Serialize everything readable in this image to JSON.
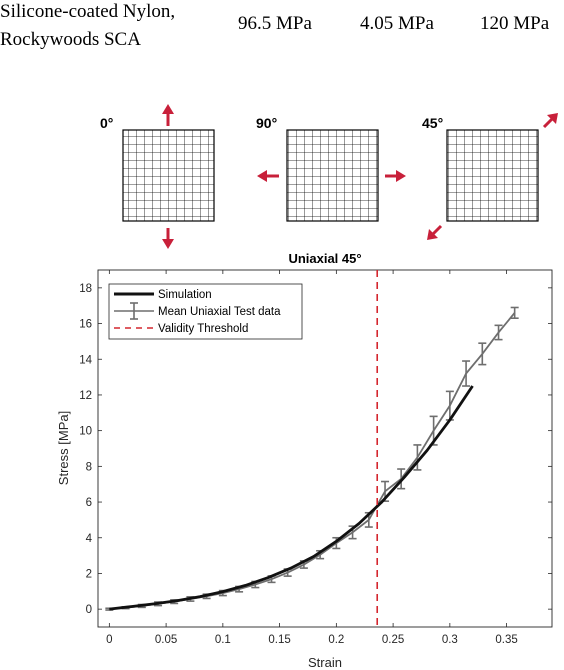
{
  "table_row": {
    "material_line1": "Silicone-coated Nylon,",
    "material_line2": "Rockywoods SCA",
    "value1": "96.5 MPa",
    "value2": "4.05 MPa",
    "value3": "120 MPa"
  },
  "orientations": [
    {
      "label": "0°",
      "arrow_direction": "vertical"
    },
    {
      "label": "90°",
      "arrow_direction": "horizontal"
    },
    {
      "label": "45°",
      "arrow_direction": "diagonal"
    }
  ],
  "colors": {
    "arrow": "#c8203a",
    "simulation": "#111111",
    "test_data": "#6e6e6e",
    "threshold": "#d4262e",
    "axis": "#262626"
  },
  "chart_data": {
    "type": "line",
    "title": "Uniaxial 45°",
    "xlabel": "Strain",
    "ylabel": "Stress [MPa]",
    "xlim": [
      -0.01,
      0.39
    ],
    "ylim": [
      -1,
      19
    ],
    "xticks": [
      0,
      0.05,
      0.1,
      0.15,
      0.2,
      0.25,
      0.3,
      0.35
    ],
    "xtick_labels": [
      "0",
      "0.05",
      "0.1",
      "0.15",
      "0.2",
      "0.25",
      "0.3",
      "0.35"
    ],
    "yticks": [
      0,
      2,
      4,
      6,
      8,
      10,
      12,
      14,
      16,
      18
    ],
    "ytick_labels": [
      "0",
      "2",
      "4",
      "6",
      "8",
      "10",
      "12",
      "14",
      "16",
      "18"
    ],
    "legend_position": "top-left",
    "grid": false,
    "series": [
      {
        "name": "Simulation",
        "style": "solid-thick",
        "x": [
          0,
          0.02,
          0.04,
          0.06,
          0.08,
          0.1,
          0.12,
          0.14,
          0.16,
          0.18,
          0.2,
          0.22,
          0.24,
          0.26,
          0.28,
          0.3,
          0.32
        ],
        "y": [
          0,
          0.15,
          0.3,
          0.48,
          0.7,
          0.98,
          1.33,
          1.77,
          2.3,
          2.95,
          3.8,
          4.8,
          6.0,
          7.4,
          8.9,
          10.6,
          12.5
        ]
      },
      {
        "name": "Mean Uniaxial Test data",
        "style": "errorbar",
        "x": [
          0,
          0.0143,
          0.0286,
          0.0429,
          0.0571,
          0.0714,
          0.0857,
          0.1,
          0.1143,
          0.1286,
          0.1429,
          0.1571,
          0.1714,
          0.1857,
          0.2,
          0.2143,
          0.2286,
          0.2429,
          0.2571,
          0.2714,
          0.2857,
          0.3,
          0.3143,
          0.3286,
          0.3429,
          0.3571
        ],
        "y": [
          0,
          0.08,
          0.18,
          0.3,
          0.42,
          0.57,
          0.72,
          0.9,
          1.12,
          1.38,
          1.68,
          2.05,
          2.5,
          3.05,
          3.7,
          4.3,
          5.0,
          6.6,
          7.3,
          8.5,
          10.0,
          11.4,
          13.2,
          14.3,
          15.5,
          16.6
        ],
        "err": [
          0.05,
          0.05,
          0.08,
          0.1,
          0.1,
          0.12,
          0.12,
          0.14,
          0.15,
          0.17,
          0.18,
          0.2,
          0.2,
          0.22,
          0.3,
          0.35,
          0.4,
          0.55,
          0.55,
          0.7,
          0.8,
          0.8,
          0.7,
          0.6,
          0.4,
          0.3
        ]
      },
      {
        "name": "Validity Threshold",
        "style": "dashed-vertical",
        "x_value": 0.236
      }
    ]
  }
}
